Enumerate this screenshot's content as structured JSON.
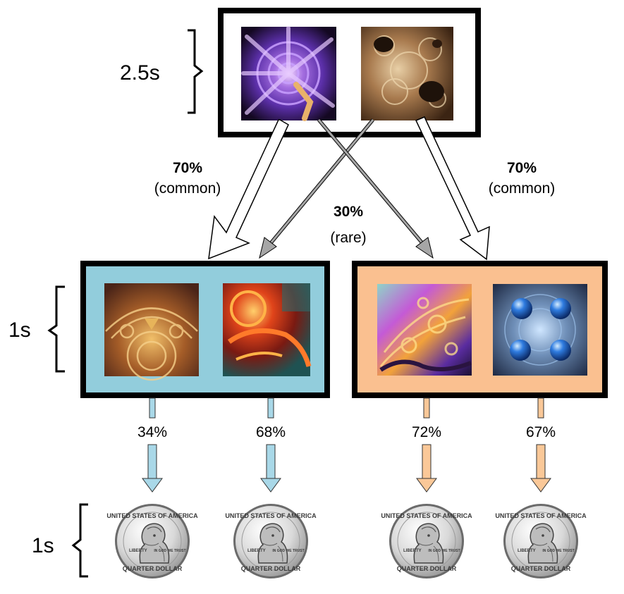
{
  "stage1": {
    "duration": "2.5s"
  },
  "stage2": {
    "duration": "1s"
  },
  "outcome": {
    "duration": "1s"
  },
  "transitions": {
    "left_common_pct": "70%",
    "left_common_label": "(common)",
    "rare_pct": "30%",
    "rare_label": "(rare)",
    "right_common_pct": "70%",
    "right_common_label": "(common)"
  },
  "reward_probabilities": [
    "34%",
    "68%",
    "72%",
    "67%"
  ],
  "coin": {
    "top_text": "UNITED STATES OF AMERICA",
    "left_text": "LIBERTY",
    "motto": "IN GOD WE TRUST",
    "bottom_text": "QUARTER DOLLAR"
  },
  "colors": {
    "blue_state": "#92cddc",
    "orange_state": "#fac090",
    "blue_arrow": "#a9d8e8",
    "orange_arrow": "#fac898",
    "rare_arrow": "#a6a6a6",
    "frame": "#000000"
  }
}
